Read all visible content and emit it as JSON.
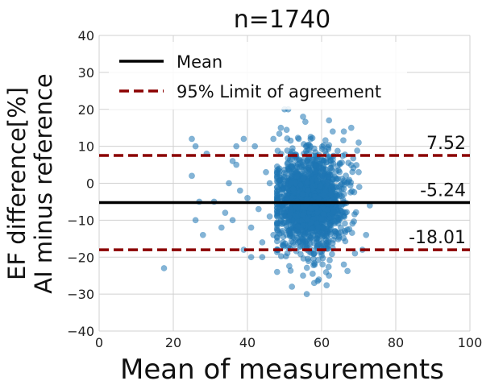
{
  "chart_data": {
    "type": "scatter",
    "title": "n=1740",
    "xlabel": "Mean of measurements",
    "ylabel_lines": [
      "EF difference[%]",
      "AI minus reference"
    ],
    "xlim": [
      0,
      100
    ],
    "ylim": [
      -40,
      40
    ],
    "x_ticks": [
      0,
      20,
      40,
      60,
      80,
      100
    ],
    "y_ticks": [
      -40,
      -30,
      -20,
      -10,
      0,
      10,
      20,
      30,
      40
    ],
    "x_tick_labels": [
      "0",
      "20",
      "40",
      "60",
      "80",
      "100"
    ],
    "y_tick_labels": [
      "−40",
      "−30",
      "−20",
      "−10",
      "0",
      "10",
      "20",
      "30",
      "40"
    ],
    "grid": true,
    "legend_position": "top-left",
    "legend": [
      {
        "label": "Mean",
        "style": "solid",
        "color": "#000000"
      },
      {
        "label": "95% Limit of agreement",
        "style": "dashed",
        "color": "#8b0000"
      }
    ],
    "reference_lines": [
      {
        "name": "upper-limit",
        "y": 7.52,
        "label": "7.52",
        "style": "dashed",
        "color": "#8b0000"
      },
      {
        "name": "mean",
        "y": -5.24,
        "label": "-5.24",
        "style": "solid",
        "color": "#000000"
      },
      {
        "name": "lower-limit",
        "y": -18.01,
        "label": "-18.01",
        "style": "dashed",
        "color": "#8b0000"
      }
    ],
    "point_color": "#1f77b4",
    "n_points": 1740,
    "scatter_summary": {
      "x_mean": 57,
      "x_sd": 4.5,
      "y_mean": -5.24,
      "y_sd": 6.5
    },
    "points": [
      {
        "x": 17.5,
        "y": -23
      },
      {
        "x": 25,
        "y": 12
      },
      {
        "x": 26,
        "y": 10
      },
      {
        "x": 27,
        "y": -5
      },
      {
        "x": 26,
        "y": -10
      },
      {
        "x": 28,
        "y": -14
      },
      {
        "x": 29,
        "y": 8
      },
      {
        "x": 25,
        "y": 2
      },
      {
        "x": 31,
        "y": -5
      },
      {
        "x": 33,
        "y": -12
      },
      {
        "x": 34,
        "y": -8
      },
      {
        "x": 35,
        "y": 0
      },
      {
        "x": 36,
        "y": -10
      },
      {
        "x": 37,
        "y": 5
      },
      {
        "x": 38,
        "y": -2
      },
      {
        "x": 39,
        "y": -18
      },
      {
        "x": 40,
        "y": -4
      },
      {
        "x": 41,
        "y": -12
      },
      {
        "x": 42,
        "y": 10
      },
      {
        "x": 43,
        "y": -7
      },
      {
        "x": 44,
        "y": -16
      },
      {
        "x": 45,
        "y": 3
      },
      {
        "x": 46,
        "y": -9
      },
      {
        "x": 47,
        "y": -14
      },
      {
        "x": 37,
        "y": 10
      },
      {
        "x": 36,
        "y": 6
      },
      {
        "x": 39,
        "y": 12
      },
      {
        "x": 41,
        "y": -20
      },
      {
        "x": 47,
        "y": 12
      },
      {
        "x": 49,
        "y": 15
      },
      {
        "x": 51,
        "y": 20
      },
      {
        "x": 50,
        "y": 20
      },
      {
        "x": 55,
        "y": 18
      },
      {
        "x": 62,
        "y": 17
      },
      {
        "x": 63,
        "y": 14
      },
      {
        "x": 66,
        "y": 14
      },
      {
        "x": 68,
        "y": 15
      },
      {
        "x": 56,
        "y": -30
      },
      {
        "x": 52,
        "y": -28
      },
      {
        "x": 58,
        "y": -27
      },
      {
        "x": 62,
        "y": -25
      },
      {
        "x": 55,
        "y": -25
      },
      {
        "x": 48,
        "y": -24
      },
      {
        "x": 66,
        "y": -22
      },
      {
        "x": 71,
        "y": -18
      },
      {
        "x": 72,
        "y": -14
      },
      {
        "x": 73,
        "y": -6
      },
      {
        "x": 70,
        "y": 3
      },
      {
        "x": 70,
        "y": 11
      },
      {
        "x": 69,
        "y": -19
      },
      {
        "x": 44,
        "y": -20
      },
      {
        "x": 46,
        "y": 0
      }
    ]
  }
}
